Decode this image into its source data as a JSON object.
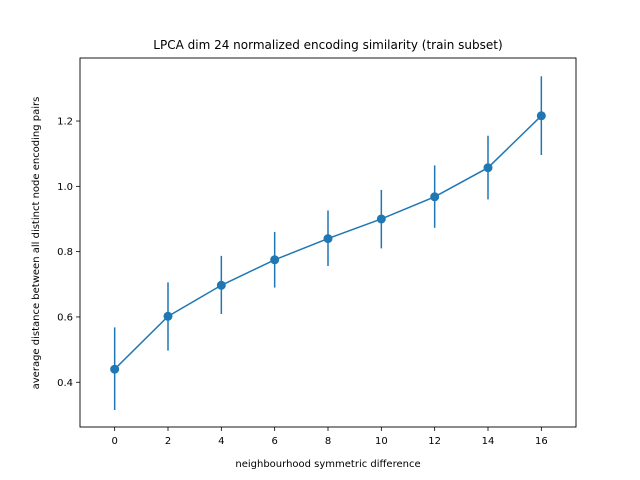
{
  "chart_data": {
    "type": "line",
    "title": "LPCA dim 24 normalized encoding similarity (train subset)",
    "xlabel": "neighbourhood symmetric difference",
    "ylabel": "average distance between all distinct node encoding pairs",
    "x": [
      0,
      2,
      4,
      6,
      8,
      10,
      12,
      14,
      16
    ],
    "series": [
      {
        "y": [
          0.44,
          0.602,
          0.697,
          0.775,
          0.84,
          0.9,
          0.968,
          1.057,
          1.216
        ],
        "yerr_low": [
          0.315,
          0.497,
          0.609,
          0.69,
          0.756,
          0.81,
          0.873,
          0.96,
          1.096
        ],
        "yerr_high": [
          0.568,
          0.706,
          0.787,
          0.86,
          0.926,
          0.989,
          1.064,
          1.155,
          1.337
        ],
        "color": "#1f77b4"
      }
    ],
    "xlim": [
      -1.3,
      17.3
    ],
    "ylim": [
      0.263,
      1.393
    ],
    "xticks": [
      "0",
      "2",
      "4",
      "6",
      "8",
      "10",
      "12",
      "14",
      "16"
    ],
    "yticks": [
      "0.4",
      "0.6",
      "0.8",
      "1.0",
      "1.2"
    ],
    "grid": false
  }
}
